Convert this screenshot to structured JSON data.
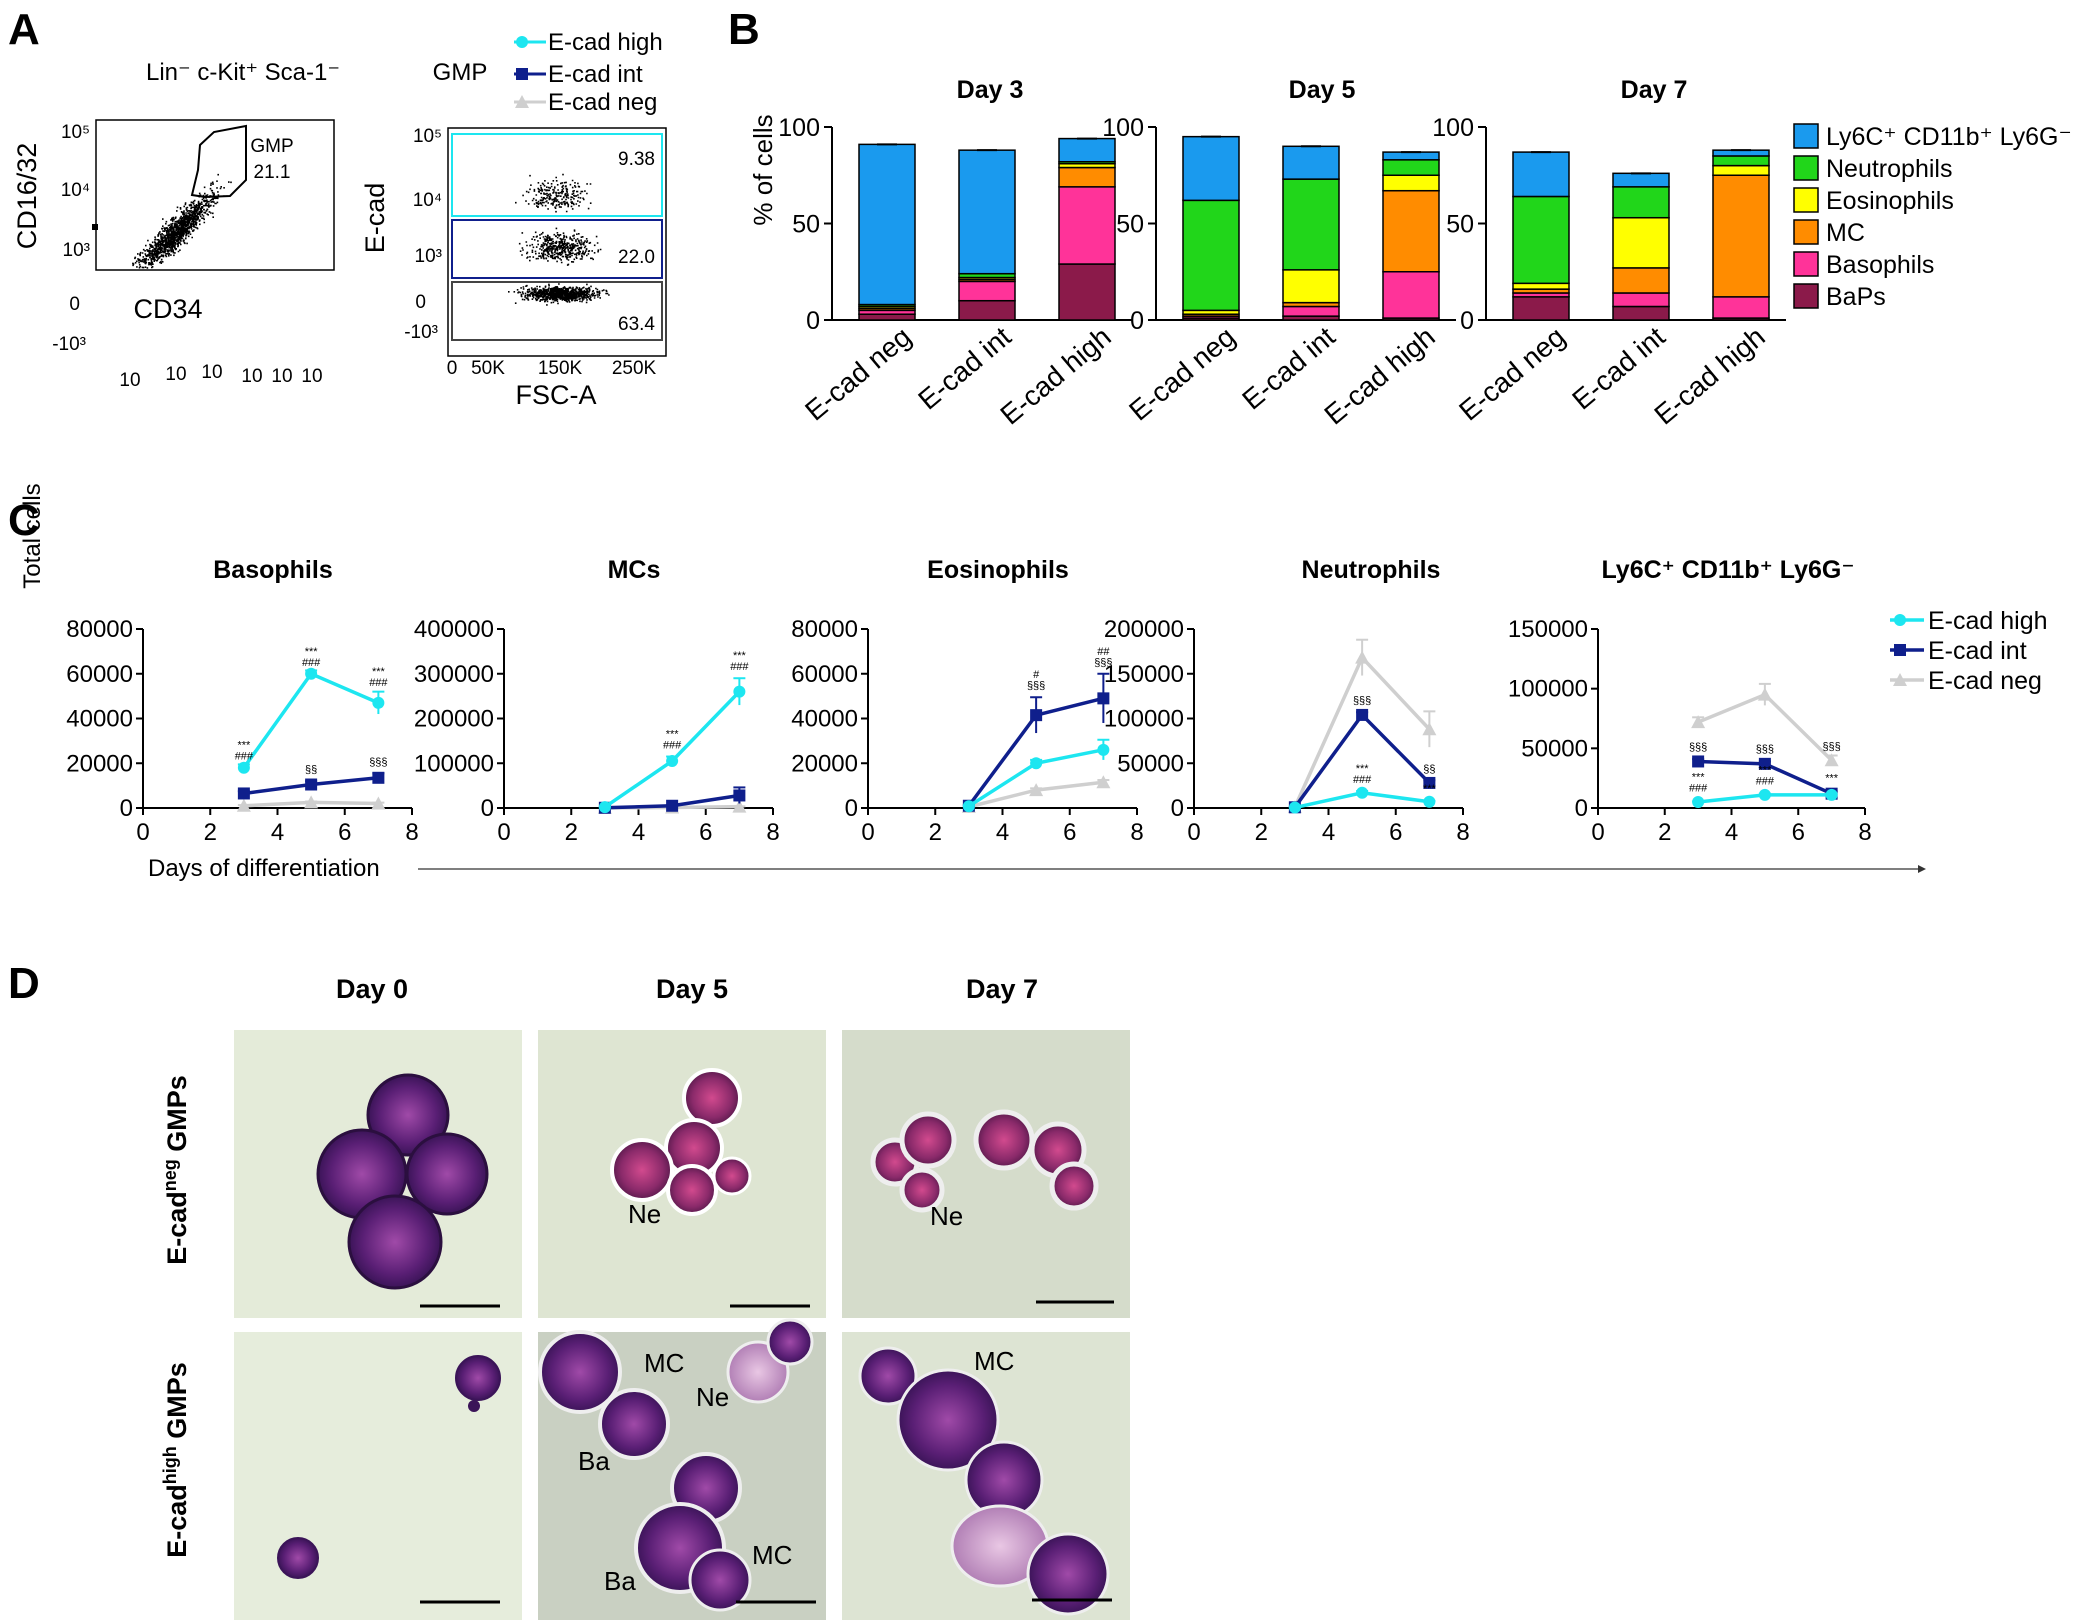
{
  "panels": {
    "a": "A",
    "b": "B",
    "c": "C",
    "d": "D"
  },
  "colors": {
    "e_cad_high": "#1de6f0",
    "e_cad_int": "#0f1f8c",
    "e_cad_neg": "#cfcfcf",
    "ly6c": "#1a9aee",
    "neutrophils": "#21d61a",
    "eosinophils": "#ffff00",
    "mc": "#ff8c00",
    "basophils": "#ff3399",
    "baps": "#8b1a4a"
  },
  "panel_a": {
    "plot1": {
      "title": "Lin⁻ c-Kit⁺ Sca-1⁻",
      "ylabel": "CD16/32",
      "xlabel": "CD34",
      "yticks": [
        "10⁵",
        "10⁴",
        "10³",
        "0",
        "-10³"
      ],
      "xticks": [
        "10",
        "10",
        "10",
        "10",
        "10",
        "10"
      ],
      "gate_label": "GMP",
      "gate_value": "21.1"
    },
    "plot2": {
      "title": "GMP",
      "ylabel": "E-cad",
      "xlabel": "FSC-A",
      "yticks": [
        "10⁵",
        "10⁴",
        "10³",
        "0",
        "-10³"
      ],
      "xticks": [
        "0",
        "50K",
        "150K",
        "250K"
      ],
      "gates": [
        "9.38",
        "22.0",
        "63.4"
      ],
      "legend": [
        "E-cad high",
        "E-cad int",
        "E-cad neg"
      ]
    }
  },
  "chart_data": [
    {
      "type": "bar",
      "stacked": true,
      "title": "Day 3",
      "ylabel": "% of cells",
      "ylim": [
        0,
        100
      ],
      "yticks": [
        "0",
        "50",
        "100"
      ],
      "categories": [
        "E-cad neg",
        "E-cad int",
        "E-cad high"
      ],
      "series": [
        {
          "name": "BaPs",
          "values": [
            3,
            10,
            29
          ]
        },
        {
          "name": "Basophils",
          "values": [
            2,
            10,
            40
          ]
        },
        {
          "name": "MC",
          "values": [
            1,
            1,
            10
          ]
        },
        {
          "name": "Eosinophils",
          "values": [
            1,
            1,
            2
          ]
        },
        {
          "name": "Neutrophils",
          "values": [
            1,
            2,
            1
          ]
        },
        {
          "name": "Ly6C⁺ CD11b⁺ Ly6G⁻",
          "values": [
            83,
            64,
            12
          ]
        }
      ]
    },
    {
      "type": "bar",
      "stacked": true,
      "title": "Day 5",
      "ylim": [
        0,
        100
      ],
      "yticks": [
        "0",
        "50",
        "100"
      ],
      "categories": [
        "E-cad neg",
        "E-cad int",
        "E-cad high"
      ],
      "series": [
        {
          "name": "BaPs",
          "values": [
            1,
            2,
            1
          ]
        },
        {
          "name": "Basophils",
          "values": [
            1,
            5,
            24
          ]
        },
        {
          "name": "MC",
          "values": [
            1,
            2,
            42
          ]
        },
        {
          "name": "Eosinophils",
          "values": [
            2,
            17,
            8
          ]
        },
        {
          "name": "Neutrophils",
          "values": [
            57,
            47,
            8
          ]
        },
        {
          "name": "Ly6C⁺ CD11b⁺ Ly6G⁻",
          "values": [
            33,
            17,
            4
          ]
        }
      ]
    },
    {
      "type": "bar",
      "stacked": true,
      "title": "Day 7",
      "ylim": [
        0,
        100
      ],
      "yticks": [
        "0",
        "50",
        "100"
      ],
      "categories": [
        "E-cad neg",
        "E-cad int",
        "E-cad high"
      ],
      "series": [
        {
          "name": "BaPs",
          "values": [
            12,
            7,
            1
          ]
        },
        {
          "name": "Basophils",
          "values": [
            2,
            7,
            11
          ]
        },
        {
          "name": "MC",
          "values": [
            2,
            13,
            63
          ]
        },
        {
          "name": "Eosinophils",
          "values": [
            3,
            26,
            5
          ]
        },
        {
          "name": "Neutrophils",
          "values": [
            45,
            16,
            5
          ]
        },
        {
          "name": "Ly6C⁺ CD11b⁺ Ly6G⁻",
          "values": [
            23,
            7,
            3
          ]
        }
      ]
    },
    {
      "type": "line",
      "title": "Basophils",
      "ylabel": "Total cells",
      "xlabel": "Days of differentiation",
      "xlim": [
        0,
        8
      ],
      "ylim": [
        0,
        80000
      ],
      "xticks": [
        "0",
        "2",
        "4",
        "6",
        "8"
      ],
      "yticks": [
        "0",
        "20000",
        "40000",
        "60000",
        "80000"
      ],
      "x": [
        3,
        5,
        7
      ],
      "series": [
        {
          "name": "E-cad high",
          "values": [
            18000,
            60000,
            47000
          ],
          "err": [
            1500,
            1500,
            5000
          ]
        },
        {
          "name": "E-cad int",
          "values": [
            6500,
            10500,
            13500
          ],
          "err": [
            1000,
            1500,
            2000
          ]
        },
        {
          "name": "E-cad neg",
          "values": [
            1000,
            2500,
            2000
          ],
          "err": [
            300,
            400,
            400
          ]
        }
      ],
      "annotations": [
        {
          "x": 3,
          "y": 18000,
          "lines": [
            "***",
            "###"
          ]
        },
        {
          "x": 5,
          "y": 60000,
          "lines": [
            "***",
            "###"
          ]
        },
        {
          "x": 7,
          "y": 51000,
          "lines": [
            "***",
            "###"
          ]
        },
        {
          "x": 5,
          "y": 12000,
          "lines": [
            "§§"
          ]
        },
        {
          "x": 7,
          "y": 15500,
          "lines": [
            "§§§"
          ]
        }
      ]
    },
    {
      "type": "line",
      "title": "MCs",
      "xlim": [
        0,
        8
      ],
      "ylim": [
        0,
        400000
      ],
      "xticks": [
        "0",
        "2",
        "4",
        "6",
        "8"
      ],
      "yticks": [
        "0",
        "100000",
        "200000",
        "300000",
        "400000"
      ],
      "x": [
        3,
        5,
        7
      ],
      "series": [
        {
          "name": "E-cad high",
          "values": [
            2000,
            105000,
            260000
          ],
          "err": [
            1000,
            10000,
            30000
          ]
        },
        {
          "name": "E-cad int",
          "values": [
            500,
            5000,
            28000
          ],
          "err": [
            300,
            2000,
            18000
          ]
        },
        {
          "name": "E-cad neg",
          "values": [
            300,
            1000,
            3000
          ],
          "err": [
            100,
            300,
            800
          ]
        }
      ],
      "annotations": [
        {
          "x": 5,
          "y": 115000,
          "lines": [
            "***",
            "###"
          ]
        },
        {
          "x": 7,
          "y": 290000,
          "lines": [
            "***",
            "###"
          ]
        }
      ]
    },
    {
      "type": "line",
      "title": "Eosinophils",
      "xlim": [
        0,
        8
      ],
      "ylim": [
        0,
        80000
      ],
      "xticks": [
        "0",
        "2",
        "4",
        "6",
        "8"
      ],
      "yticks": [
        "0",
        "20000",
        "40000",
        "60000",
        "80000"
      ],
      "x": [
        3,
        5,
        7
      ],
      "series": [
        {
          "name": "E-cad high",
          "values": [
            800,
            20000,
            26000
          ],
          "err": [
            300,
            1500,
            4500
          ]
        },
        {
          "name": "E-cad int",
          "values": [
            1000,
            41500,
            49000
          ],
          "err": [
            300,
            8000,
            11000
          ]
        },
        {
          "name": "E-cad neg",
          "values": [
            500,
            8000,
            11500
          ],
          "err": [
            200,
            800,
            1000
          ]
        }
      ],
      "annotations": [
        {
          "x": 5,
          "y": 49500,
          "lines": [
            "#",
            "§§§"
          ]
        },
        {
          "x": 7,
          "y": 60000,
          "lines": [
            "##",
            "§§§"
          ]
        }
      ]
    },
    {
      "type": "line",
      "title": "Neutrophils",
      "xlim": [
        0,
        8
      ],
      "ylim": [
        0,
        200000
      ],
      "xticks": [
        "0",
        "2",
        "4",
        "6",
        "8"
      ],
      "yticks": [
        "0",
        "50000",
        "100000",
        "150000",
        "200000"
      ],
      "x": [
        3,
        5,
        7
      ],
      "series": [
        {
          "name": "E-cad high",
          "values": [
            500,
            17000,
            7000
          ],
          "err": [
            200,
            2000,
            1000
          ]
        },
        {
          "name": "E-cad int",
          "values": [
            800,
            104000,
            28000
          ],
          "err": [
            300,
            3000,
            3000
          ]
        },
        {
          "name": "E-cad neg",
          "values": [
            1000,
            168000,
            88000
          ],
          "err": [
            400,
            20000,
            20000
          ]
        }
      ],
      "annotations": [
        {
          "x": 5,
          "y": 107000,
          "lines": [
            "§§§"
          ]
        },
        {
          "x": 7,
          "y": 31000,
          "lines": [
            "§§"
          ]
        },
        {
          "x": 5,
          "y": 19000,
          "lines": [
            "***",
            "###"
          ]
        },
        {
          "x": 7,
          "y": 9000,
          "lines": [
            "***"
          ]
        }
      ]
    },
    {
      "type": "line",
      "title": "Ly6C⁺ CD11b⁺ Ly6G⁻",
      "xlim": [
        0,
        8
      ],
      "ylim": [
        0,
        150000
      ],
      "xticks": [
        "0",
        "2",
        "4",
        "6",
        "8"
      ],
      "yticks": [
        "0",
        "50000",
        "100000",
        "150000"
      ],
      "x": [
        3,
        5,
        7
      ],
      "series": [
        {
          "name": "E-cad high",
          "values": [
            5000,
            11000,
            11000
          ],
          "err": [
            500,
            1000,
            1000
          ]
        },
        {
          "name": "E-cad int",
          "values": [
            39000,
            37000,
            12000
          ],
          "err": [
            2000,
            2000,
            2000
          ]
        },
        {
          "name": "E-cad neg",
          "values": [
            72000,
            95000,
            40000
          ],
          "err": [
            4000,
            9000,
            4000
          ]
        }
      ],
      "annotations": [
        {
          "x": 3,
          "y": 41500,
          "lines": [
            "§§§"
          ]
        },
        {
          "x": 5,
          "y": 40000,
          "lines": [
            "§§§"
          ]
        },
        {
          "x": 7,
          "y": 42000,
          "lines": [
            "§§§"
          ]
        },
        {
          "x": 3,
          "y": 7000,
          "lines": [
            "***",
            "###"
          ]
        },
        {
          "x": 5,
          "y": 13000,
          "lines": [
            "***",
            "###"
          ]
        },
        {
          "x": 7,
          "y": 15500,
          "lines": [
            "***"
          ]
        }
      ]
    }
  ],
  "legend_b": [
    "Ly6C⁺ CD11b⁺ Ly6G⁻",
    "Neutrophils",
    "Eosinophils",
    "MC",
    "Basophils",
    "BaPs"
  ],
  "legend_c": [
    "E-cad high",
    "E-cad int",
    "E-cad neg"
  ],
  "panel_d": {
    "columns": [
      "Day 0",
      "Day 5",
      "Day 7"
    ],
    "rows": [
      "E-cad",
      "neg",
      " GMPs",
      "E-cad",
      "high",
      " GMPs"
    ],
    "labels": [
      "Ne",
      "Ne",
      "MC",
      "Ne",
      "Ba",
      "MC",
      "Ba",
      "MC"
    ]
  }
}
